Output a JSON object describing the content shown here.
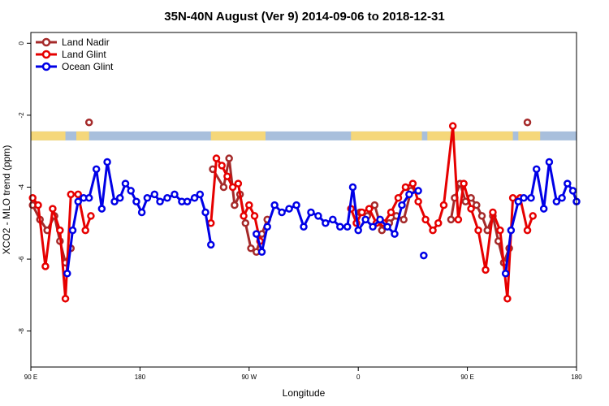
{
  "chart_data": {
    "type": "line",
    "title": "35N-40N August (Ver 9)   2014-09-06 to 2018-12-31",
    "xlabel": "Longitude",
    "ylabel": "XCO2 - MLO trend (ppm)",
    "xlim": [
      0,
      300
    ],
    "ylim": [
      -9,
      0.3
    ],
    "x_ticks": [
      {
        "value": 0,
        "label": "90 E"
      },
      {
        "value": 60,
        "label": "180"
      },
      {
        "value": 120,
        "label": "90 W"
      },
      {
        "value": 180,
        "label": "0"
      },
      {
        "value": 240,
        "label": "90 E"
      },
      {
        "value": 300,
        "label": "180"
      }
    ],
    "y_ticks": [
      {
        "value": 0,
        "label": "0"
      },
      {
        "value": -2,
        "label": "-2"
      },
      {
        "value": -4,
        "label": "-4"
      },
      {
        "value": -6,
        "label": "-6"
      },
      {
        "value": -8,
        "label": "-8"
      }
    ],
    "legend_position": "top-left",
    "land_mask": {
      "y_top": -2.45,
      "y_bottom": -2.7,
      "ocean_color": "#a8bfdc",
      "land_color": "#f5d77a",
      "land_ranges": [
        [
          0,
          19
        ],
        [
          25,
          32
        ],
        [
          99,
          129
        ],
        [
          176,
          215
        ],
        [
          218,
          265
        ],
        [
          268,
          280
        ]
      ]
    },
    "series": [
      {
        "name": "Land Nadir",
        "color": "#a52a2a",
        "segments": [
          [
            [
              1,
              -4.5
            ],
            [
              5,
              -4.9
            ],
            [
              9,
              -5.2
            ],
            [
              13,
              -4.8
            ],
            [
              16,
              -5.5
            ],
            [
              19,
              -6.1
            ],
            [
              22,
              -5.7
            ]
          ],
          [
            [
              32,
              -2.2
            ]
          ],
          [
            [
              100,
              -3.5
            ],
            [
              106,
              -4
            ],
            [
              109,
              -3.2
            ],
            [
              112,
              -4.5
            ],
            [
              115,
              -4.2
            ],
            [
              118,
              -5
            ],
            [
              121,
              -5.7
            ],
            [
              124,
              -5.8
            ],
            [
              127,
              -5.3
            ],
            [
              130,
              -4.9
            ]
          ],
          [
            [
              181,
              -4.7
            ],
            [
              185,
              -4.8
            ],
            [
              189,
              -4.5
            ],
            [
              193,
              -5.2
            ],
            [
              197,
              -5
            ],
            [
              201,
              -4.8
            ],
            [
              205,
              -4.9
            ],
            [
              209,
              -4.1
            ]
          ],
          [
            [
              231,
              -4.9
            ],
            [
              233,
              -4.3
            ],
            [
              236,
              -3.9
            ],
            [
              239,
              -4.4
            ],
            [
              242,
              -4.3
            ],
            [
              245,
              -4.5
            ],
            [
              248,
              -4.8
            ],
            [
              251,
              -5.2
            ],
            [
              254,
              -4.8
            ],
            [
              257,
              -5.5
            ],
            [
              260,
              -6.1
            ],
            [
              263,
              -5.7
            ]
          ],
          [
            [
              273,
              -2.2
            ]
          ]
        ]
      },
      {
        "name": "Land Glint",
        "color": "#e60000",
        "segments": [
          [
            [
              1,
              -4.3
            ],
            [
              4,
              -4.5
            ],
            [
              8,
              -6.2
            ],
            [
              12,
              -4.6
            ],
            [
              16,
              -5.2
            ],
            [
              19,
              -7.1
            ],
            [
              22,
              -4.2
            ],
            [
              26,
              -4.2
            ],
            [
              30,
              -5.2
            ],
            [
              33,
              -4.8
            ]
          ],
          [
            [
              99,
              -5
            ],
            [
              102,
              -3.2
            ],
            [
              105,
              -3.4
            ],
            [
              108,
              -3.7
            ],
            [
              111,
              -4
            ],
            [
              114,
              -3.9
            ],
            [
              117,
              -4.8
            ],
            [
              120,
              -4.5
            ],
            [
              123,
              -4.8
            ],
            [
              126,
              -5.5
            ]
          ],
          [
            [
              176,
              -4.6
            ],
            [
              179,
              -5
            ],
            [
              182,
              -4.7
            ],
            [
              186,
              -4.6
            ],
            [
              190,
              -5
            ],
            [
              194,
              -5
            ],
            [
              198,
              -4.7
            ],
            [
              202,
              -4.3
            ],
            [
              206,
              -4
            ],
            [
              210,
              -3.9
            ],
            [
              213,
              -4.4
            ],
            [
              217,
              -4.9
            ],
            [
              221,
              -5.2
            ],
            [
              224,
              -5
            ],
            [
              227,
              -4.5
            ],
            [
              232,
              -2.3
            ],
            [
              235,
              -4.9
            ],
            [
              238,
              -3.9
            ],
            [
              242,
              -4.6
            ],
            [
              246,
              -5.2
            ],
            [
              250,
              -6.3
            ],
            [
              254,
              -4.7
            ],
            [
              258,
              -5.2
            ],
            [
              262,
              -7.1
            ],
            [
              265,
              -4.3
            ],
            [
              269,
              -4.3
            ],
            [
              273,
              -5.2
            ],
            [
              276,
              -4.8
            ]
          ]
        ]
      },
      {
        "name": "Ocean Glint",
        "color": "#0000e6",
        "segments": [
          [
            [
              20,
              -6.4
            ],
            [
              23,
              -5.2
            ],
            [
              26,
              -4.4
            ],
            [
              29,
              -4.3
            ],
            [
              32,
              -4.3
            ],
            [
              36,
              -3.5
            ],
            [
              39,
              -4.6
            ],
            [
              42,
              -3.3
            ],
            [
              46,
              -4.4
            ],
            [
              49,
              -4.3
            ],
            [
              52,
              -3.9
            ],
            [
              55,
              -4.1
            ],
            [
              58,
              -4.4
            ],
            [
              61,
              -4.7
            ],
            [
              64,
              -4.3
            ],
            [
              68,
              -4.2
            ],
            [
              71,
              -4.4
            ],
            [
              75,
              -4.3
            ],
            [
              79,
              -4.2
            ],
            [
              83,
              -4.4
            ],
            [
              86,
              -4.4
            ],
            [
              90,
              -4.3
            ],
            [
              93,
              -4.2
            ],
            [
              96,
              -4.7
            ],
            [
              99,
              -5.6
            ]
          ],
          [
            [
              124,
              -5.3
            ],
            [
              127,
              -5.8
            ],
            [
              130,
              -5.1
            ],
            [
              134,
              -4.5
            ],
            [
              138,
              -4.7
            ],
            [
              142,
              -4.6
            ],
            [
              146,
              -4.5
            ],
            [
              150,
              -5.1
            ],
            [
              154,
              -4.7
            ],
            [
              158,
              -4.8
            ],
            [
              162,
              -5
            ],
            [
              166,
              -4.9
            ],
            [
              170,
              -5.1
            ],
            [
              174,
              -5.1
            ],
            [
              177,
              -4
            ],
            [
              180,
              -5.2
            ],
            [
              184,
              -4.9
            ],
            [
              188,
              -5.1
            ],
            [
              192,
              -4.9
            ],
            [
              196,
              -5.1
            ],
            [
              200,
              -5.3
            ],
            [
              204,
              -4.5
            ],
            [
              208,
              -4.2
            ],
            [
              213,
              -4.1
            ]
          ],
          [
            [
              216,
              -5.9
            ]
          ],
          [
            [
              261,
              -6.4
            ],
            [
              264,
              -5.2
            ],
            [
              268,
              -4.4
            ],
            [
              271,
              -4.3
            ],
            [
              275,
              -4.3
            ],
            [
              278,
              -3.5
            ],
            [
              282,
              -4.6
            ],
            [
              285,
              -3.3
            ],
            [
              289,
              -4.4
            ],
            [
              292,
              -4.3
            ],
            [
              295,
              -3.9
            ],
            [
              298,
              -4.1
            ],
            [
              300,
              -4.4
            ]
          ]
        ]
      }
    ]
  }
}
